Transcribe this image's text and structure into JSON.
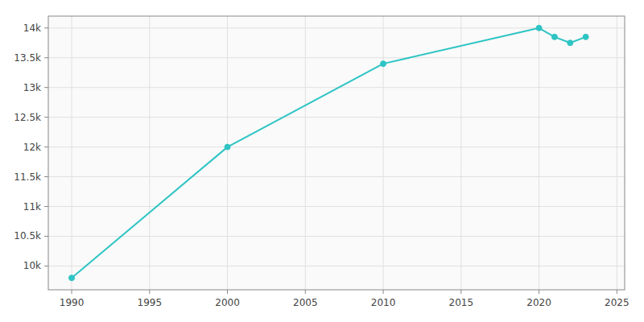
{
  "chart_data": {
    "type": "line",
    "x": [
      1990,
      2000,
      2010,
      2020,
      2021,
      2022,
      2023
    ],
    "values": [
      9800,
      12000,
      13400,
      14000,
      13850,
      13750,
      13850
    ],
    "color": "#2ec4c4",
    "marker": "circle",
    "xlim": [
      1988.5,
      2025.5
    ],
    "ylim": [
      9600,
      14200
    ],
    "xticks": [
      1990,
      1995,
      2000,
      2005,
      2010,
      2015,
      2020,
      2025
    ],
    "yticks": [
      {
        "value": 10000,
        "label": "10k"
      },
      {
        "value": 10500,
        "label": "10.5k"
      },
      {
        "value": 11000,
        "label": "11k"
      },
      {
        "value": 11500,
        "label": "11.5k"
      },
      {
        "value": 12000,
        "label": "12k"
      },
      {
        "value": 12500,
        "label": "12.5k"
      },
      {
        "value": 13000,
        "label": "13k"
      },
      {
        "value": 13500,
        "label": "13.5k"
      },
      {
        "value": 14000,
        "label": "14k"
      }
    ],
    "grid": true
  }
}
